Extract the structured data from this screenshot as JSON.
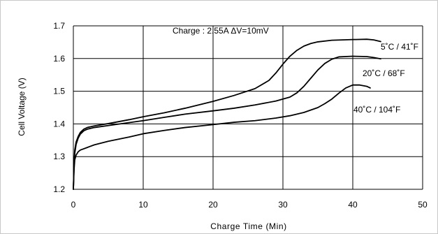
{
  "chart_data": {
    "type": "line",
    "title": "",
    "xlabel": "Charge Time (Min)",
    "ylabel": "Cell Voltage (V)",
    "xlim": [
      0,
      50
    ],
    "ylim": [
      1.2,
      1.7
    ],
    "xticks": [
      "0",
      "10",
      "20",
      "30",
      "40",
      "50"
    ],
    "yticks": [
      "1.2",
      "1.3",
      "1.4",
      "1.5",
      "1.6",
      "1.7"
    ],
    "grid": true,
    "annotation": "Charge : 2.55A  ΔV=10mV",
    "series": [
      {
        "name": "5˚C / 41˚F",
        "points": [
          [
            0,
            1.2
          ],
          [
            0.1,
            1.28
          ],
          [
            0.2,
            1.32
          ],
          [
            0.4,
            1.345
          ],
          [
            0.7,
            1.362
          ],
          [
            1.0,
            1.374
          ],
          [
            1.5,
            1.384
          ],
          [
            2,
            1.389
          ],
          [
            3,
            1.394
          ],
          [
            5,
            1.401
          ],
          [
            8,
            1.413
          ],
          [
            10,
            1.422
          ],
          [
            13,
            1.434
          ],
          [
            16,
            1.448
          ],
          [
            20,
            1.469
          ],
          [
            23,
            1.487
          ],
          [
            26,
            1.508
          ],
          [
            28,
            1.533
          ],
          [
            29,
            1.556
          ],
          [
            30,
            1.583
          ],
          [
            31,
            1.607
          ],
          [
            32,
            1.625
          ],
          [
            33,
            1.638
          ],
          [
            34,
            1.646
          ],
          [
            35,
            1.651
          ],
          [
            37,
            1.656
          ],
          [
            40,
            1.658
          ],
          [
            42,
            1.659
          ],
          [
            43,
            1.657
          ],
          [
            44,
            1.652
          ]
        ]
      },
      {
        "name": "20˚C / 68˚F",
        "points": [
          [
            0,
            1.2
          ],
          [
            0.1,
            1.27
          ],
          [
            0.2,
            1.31
          ],
          [
            0.4,
            1.338
          ],
          [
            0.7,
            1.357
          ],
          [
            1.0,
            1.369
          ],
          [
            1.5,
            1.379
          ],
          [
            2,
            1.384
          ],
          [
            3,
            1.389
          ],
          [
            5,
            1.395
          ],
          [
            8,
            1.404
          ],
          [
            10,
            1.41
          ],
          [
            13,
            1.42
          ],
          [
            16,
            1.43
          ],
          [
            20,
            1.44
          ],
          [
            23,
            1.448
          ],
          [
            26,
            1.458
          ],
          [
            29,
            1.47
          ],
          [
            31,
            1.482
          ],
          [
            32,
            1.495
          ],
          [
            33,
            1.515
          ],
          [
            34,
            1.54
          ],
          [
            35,
            1.565
          ],
          [
            36,
            1.585
          ],
          [
            37,
            1.598
          ],
          [
            38,
            1.605
          ],
          [
            40,
            1.607
          ],
          [
            42,
            1.606
          ],
          [
            43,
            1.603
          ],
          [
            44,
            1.599
          ]
        ]
      },
      {
        "name": "40˚C / 104˚F",
        "points": [
          [
            0,
            1.2
          ],
          [
            0.1,
            1.26
          ],
          [
            0.2,
            1.29
          ],
          [
            0.4,
            1.305
          ],
          [
            0.7,
            1.315
          ],
          [
            1.0,
            1.32
          ],
          [
            2,
            1.328
          ],
          [
            3,
            1.336
          ],
          [
            5,
            1.347
          ],
          [
            8,
            1.36
          ],
          [
            10,
            1.37
          ],
          [
            13,
            1.38
          ],
          [
            16,
            1.389
          ],
          [
            20,
            1.398
          ],
          [
            23,
            1.405
          ],
          [
            26,
            1.41
          ],
          [
            29,
            1.418
          ],
          [
            31,
            1.425
          ],
          [
            33,
            1.435
          ],
          [
            35,
            1.45
          ],
          [
            36,
            1.462
          ],
          [
            37,
            1.476
          ],
          [
            38,
            1.494
          ],
          [
            39,
            1.51
          ],
          [
            40,
            1.519
          ],
          [
            41,
            1.519
          ],
          [
            42,
            1.515
          ],
          [
            42.5,
            1.51
          ]
        ]
      }
    ]
  }
}
